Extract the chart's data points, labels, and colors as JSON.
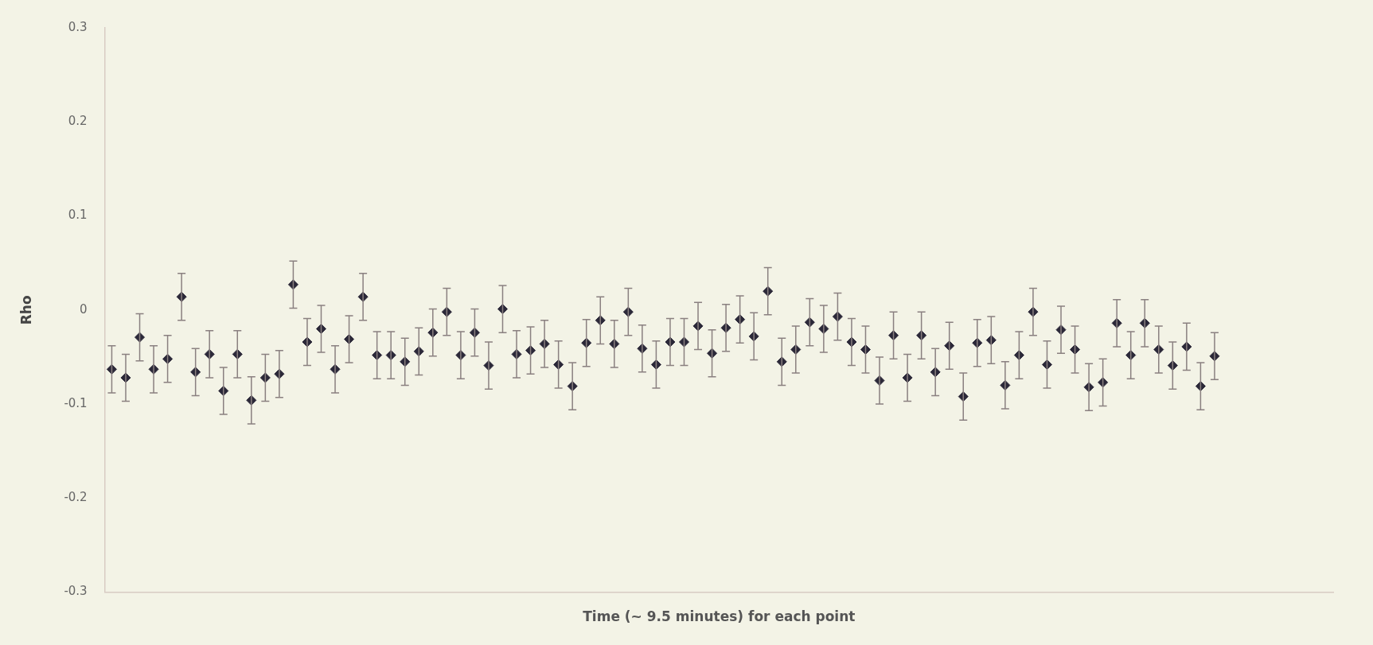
{
  "chart_data": {
    "type": "scatter",
    "xlabel": "Time (~ 9.5 minutes) for each point",
    "ylabel": "Rho",
    "categories": [
      null,
      null,
      null,
      null,
      null,
      null,
      null,
      null,
      null,
      null,
      null,
      null,
      null,
      null,
      null,
      null,
      null,
      null,
      null,
      null,
      null,
      null,
      null,
      null,
      null,
      null,
      null,
      null,
      null,
      null,
      null,
      null,
      null,
      null,
      null,
      null,
      null,
      null,
      null,
      null,
      null,
      null,
      null,
      null,
      null,
      null,
      null,
      null,
      null,
      null,
      null,
      null,
      null,
      null,
      null,
      null,
      null,
      null,
      null,
      null,
      null,
      null,
      null,
      null,
      null,
      null,
      null,
      null,
      null,
      null,
      null,
      null,
      null,
      null,
      null,
      null,
      null,
      null,
      null,
      null,
      null,
      null,
      null,
      null,
      null,
      null,
      null,
      null
    ],
    "values": [
      -0.063,
      -0.072,
      -0.029,
      -0.063,
      -0.052,
      0.014,
      -0.066,
      -0.047,
      -0.086,
      -0.047,
      -0.096,
      -0.072,
      -0.068,
      0.027,
      -0.034,
      -0.02,
      -0.063,
      -0.031,
      0.014,
      -0.048,
      -0.048,
      -0.055,
      -0.044,
      -0.024,
      -0.002,
      -0.048,
      -0.024,
      -0.059,
      0.001,
      -0.047,
      -0.043,
      -0.036,
      -0.058,
      -0.081,
      -0.035,
      -0.011,
      -0.036,
      -0.002,
      -0.041,
      -0.058,
      -0.034,
      -0.034,
      -0.017,
      -0.046,
      -0.019,
      -0.01,
      -0.028,
      0.02,
      -0.055,
      -0.042,
      -0.013,
      -0.02,
      -0.007,
      -0.034,
      -0.042,
      -0.075,
      -0.027,
      -0.072,
      -0.027,
      -0.066,
      -0.038,
      -0.092,
      -0.035,
      -0.032,
      -0.08,
      -0.048,
      -0.002,
      -0.058,
      -0.021,
      -0.042,
      -0.082,
      -0.077,
      -0.014,
      -0.048,
      -0.014,
      -0.042,
      -0.059,
      -0.039,
      -0.081,
      -0.049,
      null,
      null,
      null,
      null,
      null,
      null,
      null,
      null
    ],
    "errors": [
      0.025,
      0.025,
      0.025,
      0.025,
      0.025,
      0.025,
      0.025,
      0.025,
      0.025,
      0.025,
      0.025,
      0.025,
      0.025,
      0.025,
      0.025,
      0.025,
      0.025,
      0.025,
      0.025,
      0.025,
      0.025,
      0.025,
      0.025,
      0.025,
      0.025,
      0.025,
      0.025,
      0.025,
      0.025,
      0.025,
      0.025,
      0.025,
      0.025,
      0.025,
      0.025,
      0.025,
      0.025,
      0.025,
      0.025,
      0.025,
      0.025,
      0.025,
      0.025,
      0.025,
      0.025,
      0.025,
      0.025,
      0.025,
      0.025,
      0.025,
      0.025,
      0.025,
      0.025,
      0.025,
      0.025,
      0.025,
      0.025,
      0.025,
      0.025,
      0.025,
      0.025,
      0.025,
      0.025,
      0.025,
      0.025,
      0.025,
      0.025,
      0.025,
      0.025,
      0.025,
      0.025,
      0.025,
      0.025,
      0.025,
      0.025,
      0.025,
      0.025,
      0.025,
      0.025,
      0.025,
      null,
      null,
      null,
      null,
      null,
      null,
      null,
      null
    ],
    "color": "#2b2838",
    "marker": "diamond",
    "ylim": [
      -0.3,
      0.3
    ],
    "yticks": [
      -0.3,
      -0.2,
      -0.1,
      0,
      0.1,
      0.2,
      0.3
    ],
    "tick_labels": "y",
    "grid": false,
    "legend": false
  }
}
